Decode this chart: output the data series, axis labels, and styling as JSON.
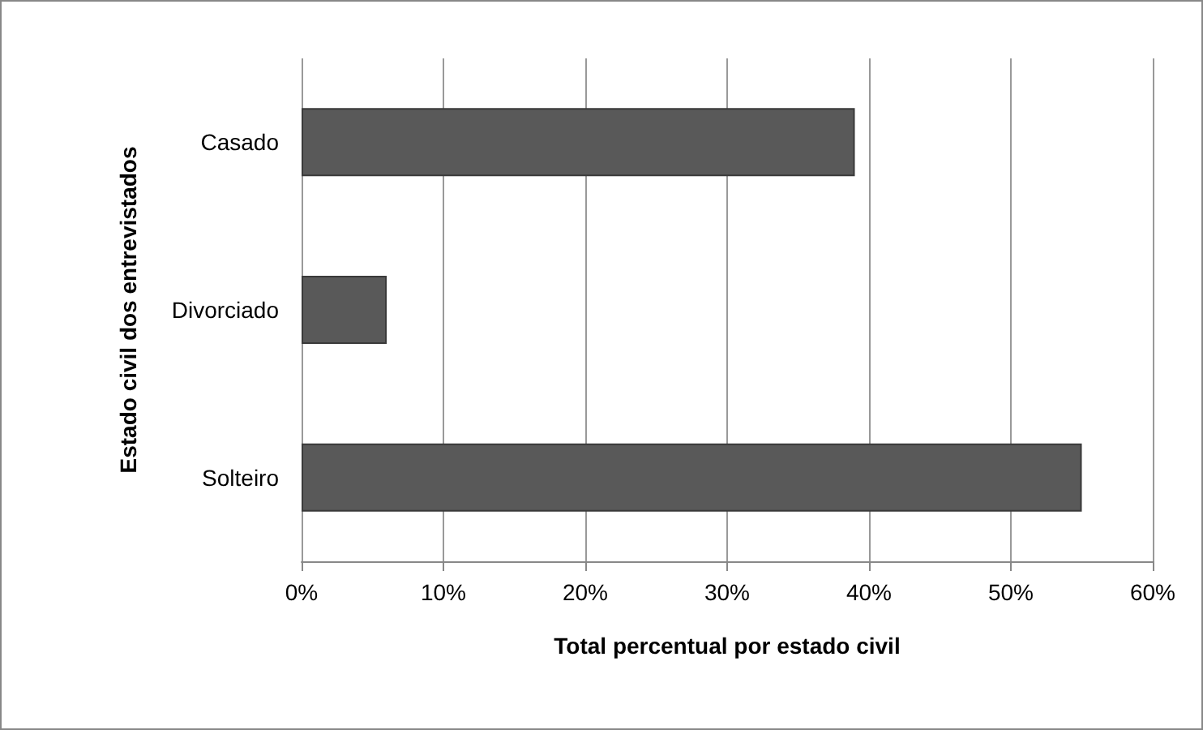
{
  "chart_data": {
    "type": "bar",
    "orientation": "horizontal",
    "categories": [
      "Casado",
      "Divorciado",
      "Solteiro"
    ],
    "values": [
      39,
      6,
      55
    ],
    "color": "#595959",
    "xlabel": "Total percentual por estado civil",
    "ylabel": "Estado civil dos entrevistados",
    "xlim": [
      0,
      60
    ],
    "xticks": [
      {
        "value": 0,
        "label": "0%"
      },
      {
        "value": 10,
        "label": "10%"
      },
      {
        "value": 20,
        "label": "20%"
      },
      {
        "value": 30,
        "label": "30%"
      },
      {
        "value": 40,
        "label": "40%"
      },
      {
        "value": 50,
        "label": "50%"
      },
      {
        "value": 60,
        "label": "60%"
      }
    ],
    "grid": "x"
  }
}
